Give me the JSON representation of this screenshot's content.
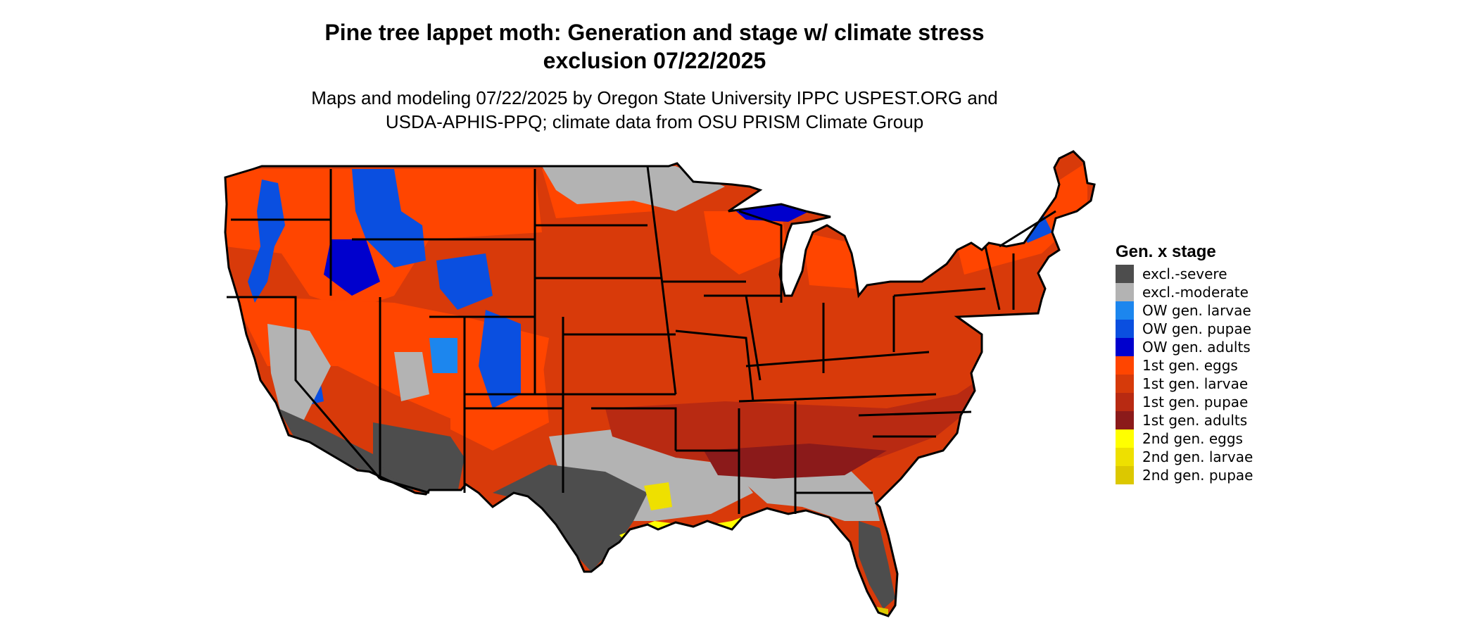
{
  "title": {
    "line1": "Pine tree lappet moth: Generation and stage w/ climate stress",
    "line2": "exclusion 07/22/2025"
  },
  "subtitle": {
    "line1": "Maps and modeling 07/22/2025 by Oregon State University IPPC USPEST.ORG and",
    "line2": "USDA-APHIS-PPQ; climate data from OSU PRISM Climate Group"
  },
  "legend": {
    "title": "Gen. x stage",
    "items": [
      {
        "label": "excl.-severe",
        "color": "#4d4d4d"
      },
      {
        "label": "excl.-moderate",
        "color": "#b3b3b3"
      },
      {
        "label": "OW gen. larvae",
        "color": "#1c86ee"
      },
      {
        "label": "OW gen. pupae",
        "color": "#0a4fe0"
      },
      {
        "label": "OW gen. adults",
        "color": "#0000cd"
      },
      {
        "label": "1st gen. eggs",
        "color": "#ff4500"
      },
      {
        "label": "1st gen. larvae",
        "color": "#d63a0a"
      },
      {
        "label": "1st gen. pupae",
        "color": "#b82a12"
      },
      {
        "label": "1st gen. adults",
        "color": "#8b1a1a"
      },
      {
        "label": "2nd gen. eggs",
        "color": "#ffff00"
      },
      {
        "label": "2nd gen. larvae",
        "color": "#eee000"
      },
      {
        "label": "2nd gen. pupae",
        "color": "#dcc800"
      }
    ]
  },
  "map": {
    "region": "conterminous-united-states",
    "background_color": "#d83a0a",
    "border_color": "#000000"
  }
}
